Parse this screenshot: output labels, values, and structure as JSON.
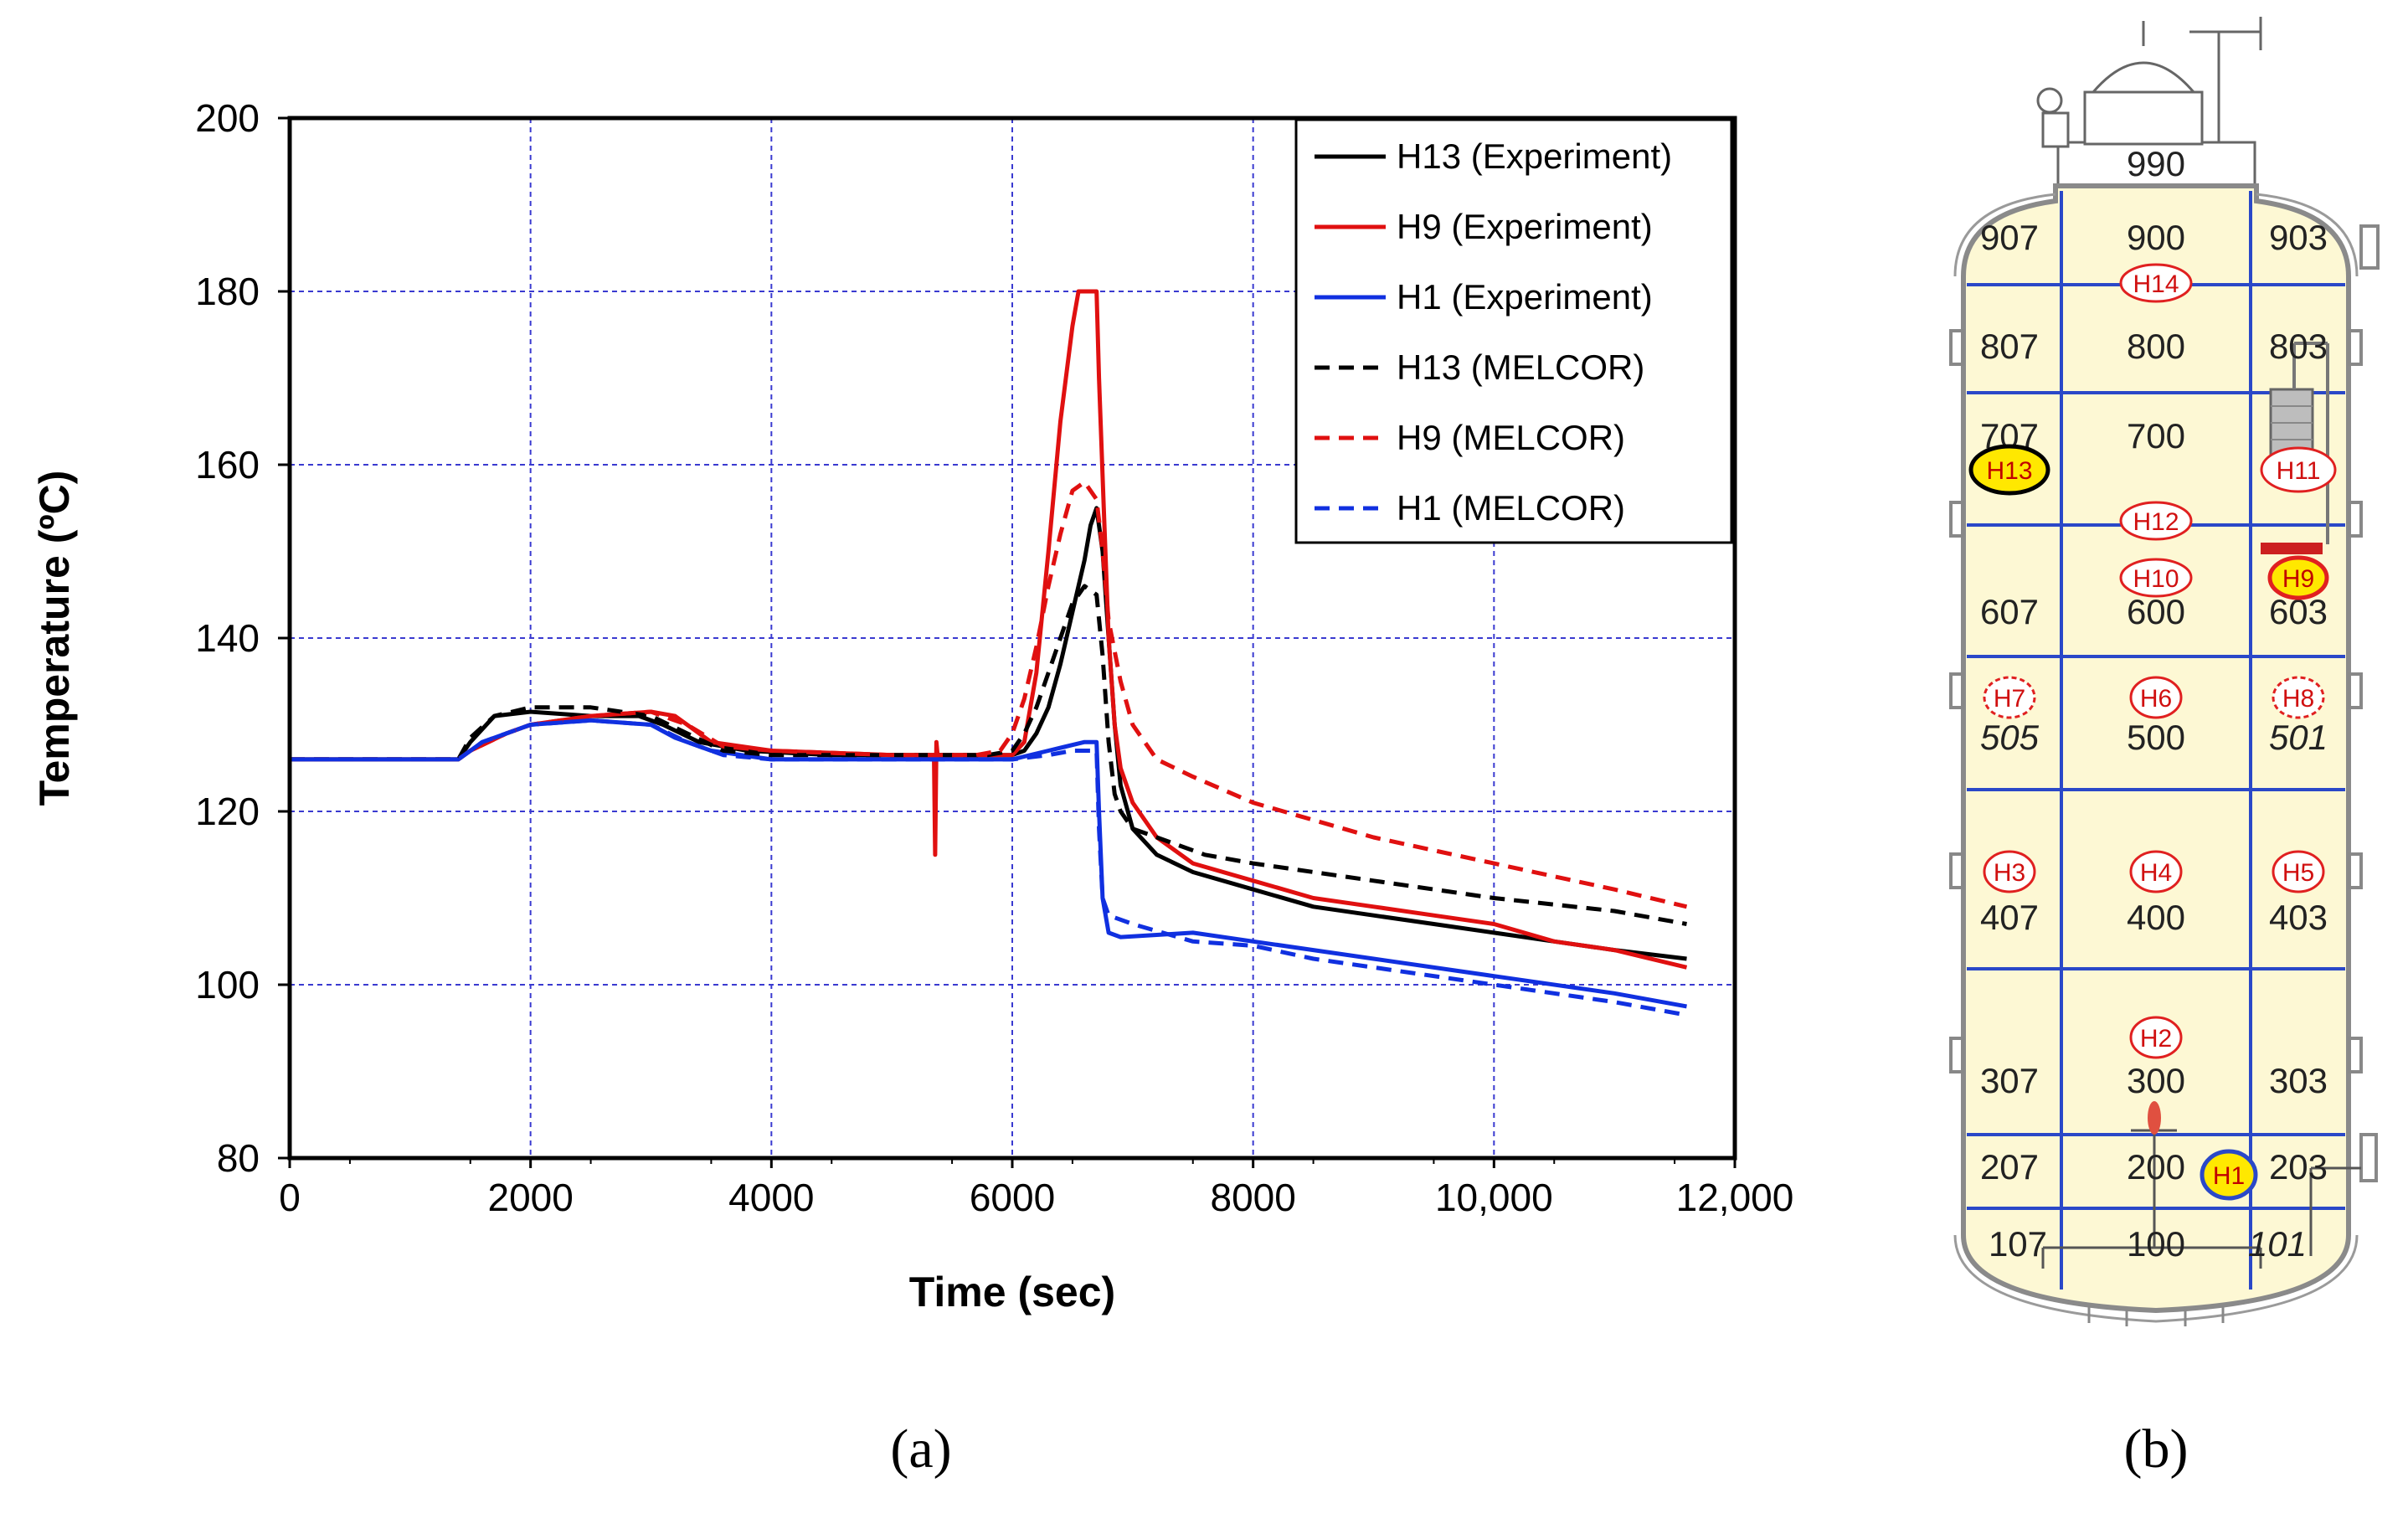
{
  "chart_data": {
    "type": "line",
    "caption": "(a)",
    "xlabel": "Time (sec)",
    "ylabel": "Temperature (ºC)",
    "xlim": [
      0,
      12000
    ],
    "ylim": [
      80,
      200
    ],
    "xticks": [
      0,
      2000,
      4000,
      6000,
      8000,
      10000,
      12000
    ],
    "xtick_labels": [
      "0",
      "2000",
      "4000",
      "6000",
      "8000",
      "10,000",
      "12,000"
    ],
    "yticks": [
      80,
      100,
      120,
      140,
      160,
      180,
      200
    ],
    "ytick_labels": [
      "80",
      "100",
      "120",
      "140",
      "160",
      "180",
      "200"
    ],
    "grid": true,
    "legend_position": "top-right",
    "series": [
      {
        "name": "H13 (Experiment)",
        "color": "#000000",
        "dash": "solid",
        "x": [
          0,
          1400,
          1500,
          1700,
          2000,
          2500,
          2900,
          3100,
          3400,
          3800,
          4500,
          5500,
          6000,
          6100,
          6200,
          6300,
          6400,
          6500,
          6600,
          6650,
          6700,
          6750,
          6800,
          6850,
          6900,
          7000,
          7200,
          7500,
          8000,
          8500,
          9000,
          9500,
          10000,
          10500,
          11000,
          11600
        ],
        "y": [
          126,
          126,
          128,
          131,
          131.5,
          131,
          131,
          130,
          128,
          127,
          126.5,
          126.5,
          126.5,
          127,
          129,
          132,
          137,
          143,
          149,
          153,
          155,
          150,
          140,
          130,
          123,
          118,
          115,
          113,
          111,
          109,
          108,
          107,
          106,
          105,
          104,
          103
        ]
      },
      {
        "name": "H9 (Experiment)",
        "color": "#e01010",
        "dash": "solid",
        "x": [
          0,
          1400,
          1500,
          1800,
          2000,
          2500,
          3000,
          3200,
          3500,
          4000,
          5000,
          5350,
          5360,
          5370,
          5380,
          6000,
          6100,
          6200,
          6300,
          6400,
          6500,
          6550,
          6600,
          6700,
          6720,
          6760,
          6800,
          6850,
          6900,
          7000,
          7200,
          7500,
          8000,
          8500,
          9000,
          9500,
          10000,
          10500,
          11000,
          11600
        ],
        "y": [
          126,
          126,
          127,
          129,
          130,
          131,
          131.5,
          131,
          128,
          127,
          126.5,
          126.5,
          115,
          128,
          126.5,
          126.5,
          128,
          136,
          150,
          165,
          176,
          180,
          180,
          180,
          170,
          155,
          140,
          130,
          125,
          121,
          117,
          114,
          112,
          110,
          109,
          108,
          107,
          105,
          104,
          102
        ]
      },
      {
        "name": "H1 (Experiment)",
        "color": "#1030e0",
        "dash": "solid",
        "x": [
          0,
          1400,
          1600,
          2000,
          2500,
          3000,
          3200,
          3500,
          4000,
          5000,
          6000,
          6300,
          6600,
          6700,
          6720,
          6750,
          6800,
          6900,
          7500,
          8000,
          8500,
          9000,
          10000,
          11000,
          11600
        ],
        "y": [
          126,
          126,
          128,
          130,
          130.5,
          130,
          128.5,
          127,
          126,
          126,
          126,
          127,
          128,
          128,
          120,
          110,
          106,
          105.5,
          106,
          105,
          104,
          103,
          101,
          99,
          97.5
        ]
      },
      {
        "name": "H13 (MELCOR)",
        "color": "#000000",
        "dash": "dashed",
        "x": [
          0,
          1400,
          1500,
          1700,
          2000,
          2500,
          3000,
          3300,
          3600,
          4000,
          5000,
          5800,
          6000,
          6100,
          6200,
          6300,
          6400,
          6500,
          6600,
          6700,
          6750,
          6800,
          6850,
          6900,
          7000,
          7200,
          7600,
          8000,
          9000,
          10000,
          11000,
          11600
        ],
        "y": [
          126,
          126,
          128.5,
          131,
          132,
          132,
          131,
          129,
          127,
          126.5,
          126.5,
          126.5,
          127,
          129,
          132,
          136,
          140,
          144,
          146,
          145,
          138,
          128,
          122,
          120,
          118,
          117,
          115,
          114,
          112,
          110,
          108.5,
          107
        ]
      },
      {
        "name": "H9 (MELCOR)",
        "color": "#e01010",
        "dash": "dashed",
        "x": [
          0,
          1400,
          1500,
          1800,
          2000,
          2500,
          3000,
          3300,
          3600,
          4000,
          5000,
          5700,
          5900,
          6000,
          6100,
          6200,
          6300,
          6400,
          6500,
          6600,
          6700,
          6750,
          6800,
          6900,
          7000,
          7200,
          7500,
          8000,
          9000,
          10000,
          11000,
          11600
        ],
        "y": [
          126,
          126,
          127,
          129,
          130,
          131,
          131.5,
          130,
          127.5,
          127,
          126.5,
          126.5,
          127,
          129,
          133,
          139,
          146,
          152,
          157,
          158,
          156,
          150,
          142,
          135,
          130,
          126,
          124,
          121,
          117,
          114,
          111,
          109
        ]
      },
      {
        "name": "H1 (MELCOR)",
        "color": "#1030e0",
        "dash": "dashed",
        "x": [
          0,
          1400,
          1600,
          2000,
          2500,
          3000,
          3300,
          3600,
          4000,
          5000,
          6000,
          6300,
          6500,
          6700,
          6720,
          6750,
          6800,
          7000,
          7500,
          8000,
          8500,
          9000,
          10000,
          11000,
          11600
        ],
        "y": [
          126,
          126,
          128,
          130,
          130.5,
          130,
          128,
          126.5,
          126,
          126,
          126,
          126.5,
          127,
          127,
          118,
          110,
          108,
          107,
          105,
          104.5,
          103,
          102,
          100,
          98,
          96.5
        ]
      }
    ]
  },
  "diagram": {
    "caption": "(b)",
    "grid_rows": [
      {
        "left": "990",
        "center": "990",
        "right": "990"
      },
      {
        "left": "907",
        "center": "900",
        "right": "903"
      },
      {
        "left": "807",
        "center": "800",
        "right": "803"
      },
      {
        "left": "707",
        "center": "700",
        "right": ""
      },
      {
        "left": "607",
        "center": "600",
        "right": "603"
      },
      {
        "left": "505",
        "center": "500",
        "right": "501"
      },
      {
        "left": "407",
        "center": "400",
        "right": "403"
      },
      {
        "left": "307",
        "center": "300",
        "right": "303"
      },
      {
        "left": "207",
        "center": "200",
        "right": "203"
      },
      {
        "left": "107",
        "center": "100",
        "right": "101"
      }
    ],
    "sensors": [
      "H1",
      "H2",
      "H3",
      "H4",
      "H5",
      "H6",
      "H7",
      "H8",
      "H9",
      "H10",
      "H11",
      "H12",
      "H13",
      "H14"
    ],
    "highlighted_sensors": [
      "H1",
      "H9",
      "H13"
    ],
    "colors": {
      "vessel_fill": "#fdf8d4",
      "grid_line": "#2a48c8",
      "sensor_outline": "#e02020",
      "highlight_fill": "#ffe800"
    }
  }
}
